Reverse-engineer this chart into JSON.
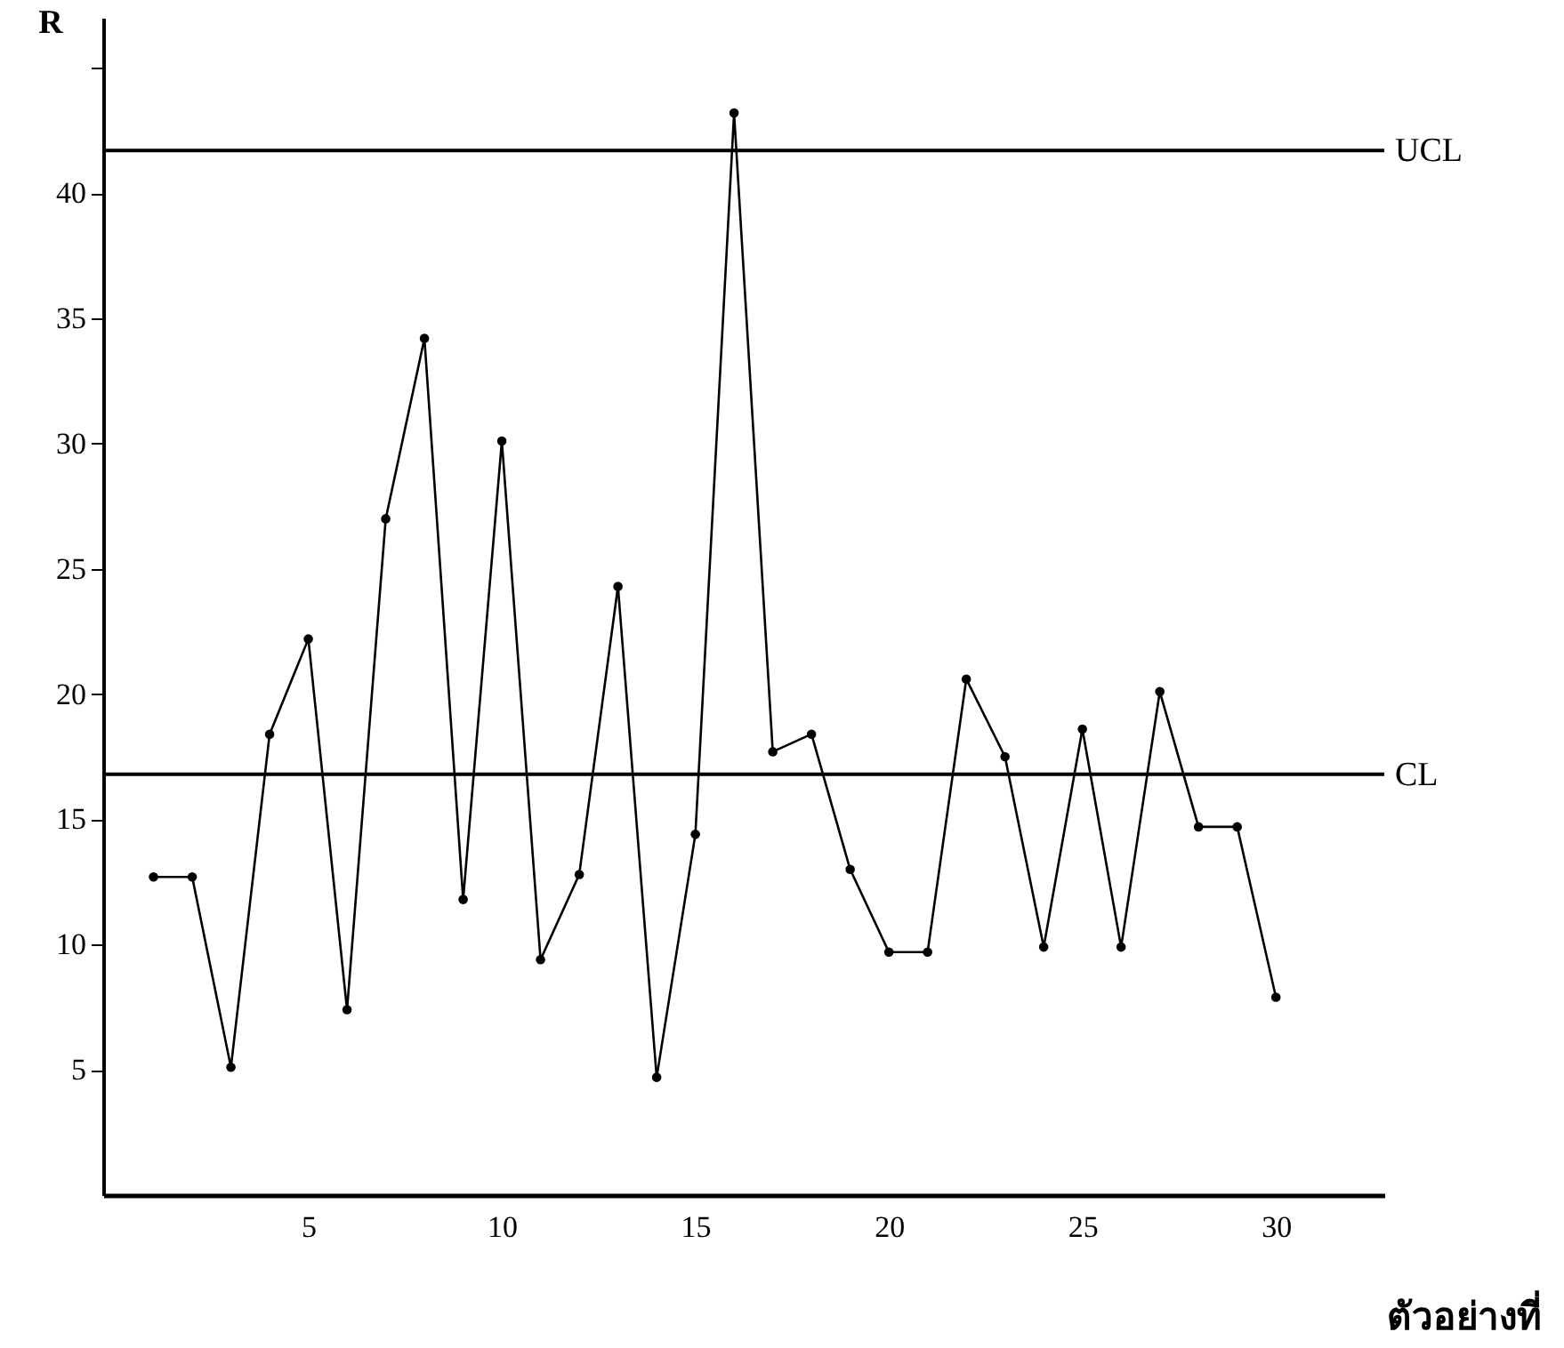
{
  "chart_data": {
    "type": "line",
    "xlabel": "ตัวอย่างที่",
    "ylabel": "R",
    "x": [
      1,
      2,
      3,
      4,
      5,
      6,
      7,
      8,
      9,
      10,
      11,
      12,
      13,
      14,
      15,
      16,
      17,
      18,
      19,
      20,
      21,
      22,
      23,
      24,
      25,
      26,
      27,
      28,
      29,
      30
    ],
    "series": [
      {
        "color": "#000000",
        "values": [
          12.7,
          12.7,
          5.1,
          18.4,
          22.2,
          7.4,
          27.0,
          34.2,
          11.8,
          30.1,
          9.4,
          12.8,
          24.3,
          4.7,
          14.4,
          43.2,
          17.7,
          18.4,
          13.0,
          9.7,
          9.7,
          20.6,
          17.5,
          9.9,
          18.6,
          9.9,
          20.1,
          14.7,
          14.7,
          7.9
        ]
      }
    ],
    "xlim": [
      -0.3,
      32.8
    ],
    "xticks": [
      5,
      10,
      15,
      20,
      25,
      30
    ],
    "ylim": [
      0,
      47
    ],
    "yticks": [
      5,
      10,
      15,
      20,
      25,
      30,
      35,
      40,
      {
        "value": 45,
        "label": null
      }
    ],
    "ref_lines": [
      {
        "axis": "y",
        "value": 41.7,
        "label": "UCL"
      },
      {
        "axis": "y",
        "value": 16.8,
        "label": "CL"
      }
    ],
    "grid": false,
    "marker": "circle",
    "line_style": "solid"
  }
}
